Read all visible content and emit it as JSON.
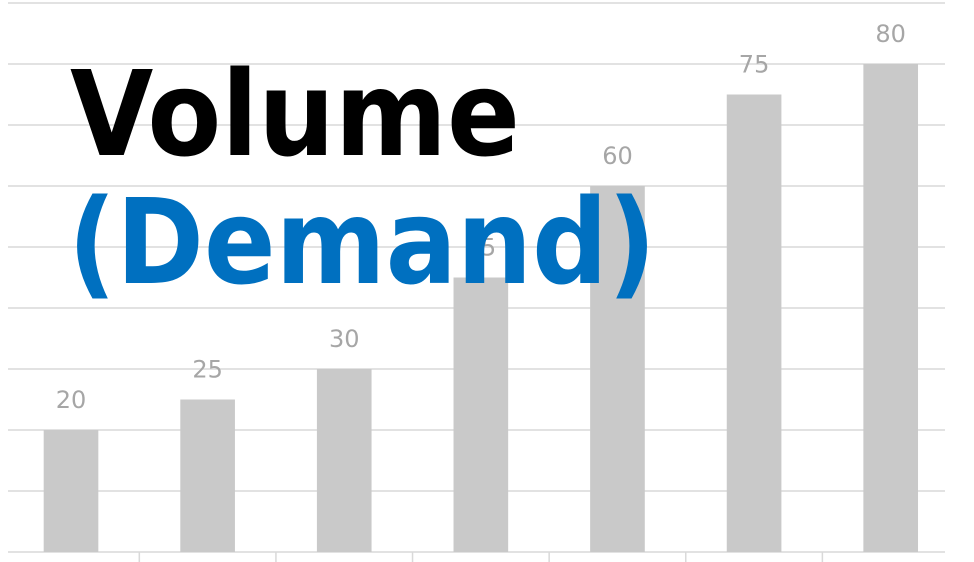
{
  "chart_data": {
    "type": "bar",
    "title": "Volume",
    "subtitle": "(Demand)",
    "categories": [
      null,
      null,
      null,
      null,
      null,
      null,
      null
    ],
    "values": [
      20,
      25,
      30,
      45,
      60,
      75,
      80
    ],
    "color": "#c9c9c9",
    "title_color": "#000000",
    "subtitle_color": "#0070c0",
    "ylim": [
      0,
      90
    ],
    "yticks": [
      0,
      10,
      20,
      30,
      40,
      50,
      60,
      70,
      80,
      90
    ],
    "grid": true
  }
}
